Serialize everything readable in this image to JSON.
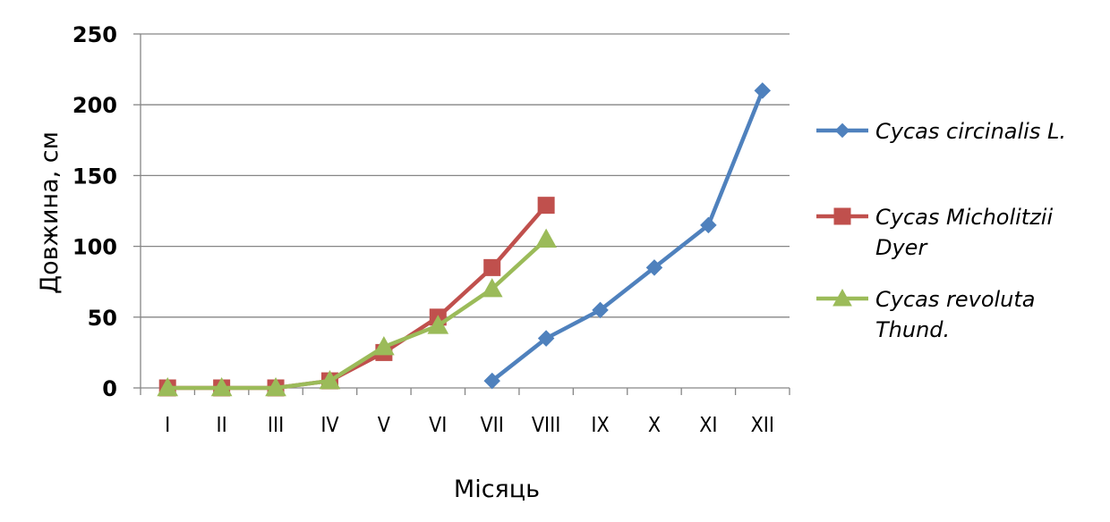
{
  "chart_data": {
    "type": "line",
    "title": "",
    "xlabel": "Місяць",
    "ylabel": "Довжина, см",
    "categories": [
      "I",
      "II",
      "III",
      "IV",
      "V",
      "VI",
      "VII",
      "VIII",
      "IX",
      "X",
      "XI",
      "XII"
    ],
    "ylim": [
      0,
      250
    ],
    "yticks": [
      0,
      50,
      100,
      150,
      200,
      250
    ],
    "grid": "horizontal",
    "legend_position": "right",
    "series": [
      {
        "name": "Cycas circinalis L.",
        "legend_lines": [
          "Cycas circinalis L."
        ],
        "color": "#4F81BD",
        "marker": "diamond",
        "values": [
          null,
          null,
          null,
          null,
          null,
          null,
          5,
          35,
          55,
          85,
          115,
          210
        ]
      },
      {
        "name": "Cycas Micholitzii Dyer",
        "legend_lines": [
          "Cycas Micholitzii",
          "Dyer"
        ],
        "color": "#C0504D",
        "marker": "square",
        "values": [
          0,
          0,
          0,
          5,
          25,
          50,
          85,
          129,
          null,
          null,
          null,
          null
        ]
      },
      {
        "name": "Cycas revoluta Thund.",
        "legend_lines": [
          "Cycas revoluta",
          "Thund."
        ],
        "color": "#9BBB59",
        "marker": "triangle",
        "values": [
          0,
          0,
          0,
          5,
          29,
          44,
          70,
          105,
          null,
          null,
          null,
          null
        ]
      }
    ]
  }
}
